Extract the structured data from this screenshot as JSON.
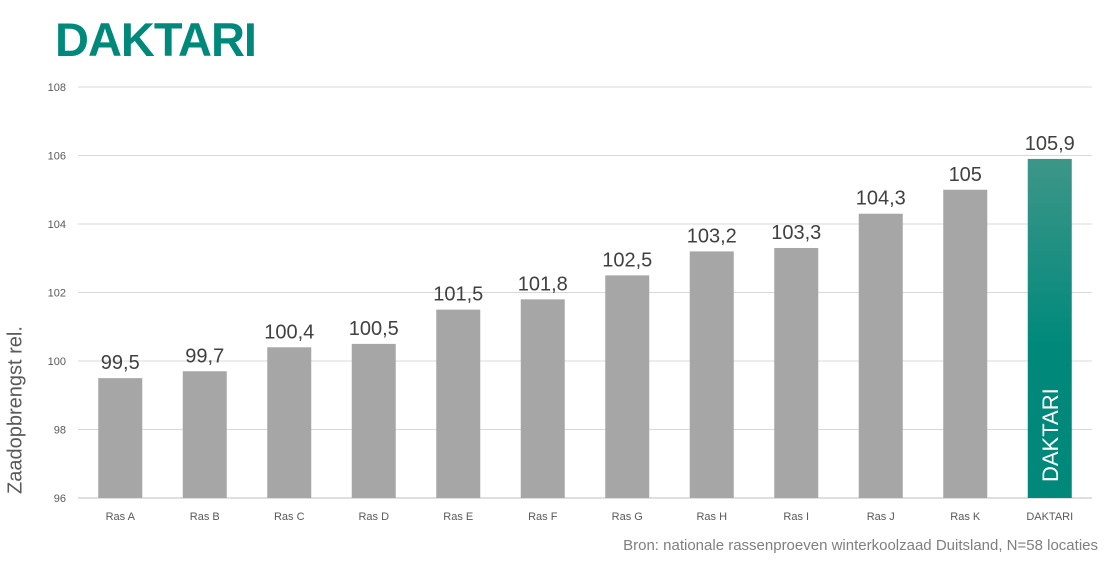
{
  "title": "DAKTARI",
  "source": "Bron: nationale rassenproeven winterkoolzaad Duitsland, N=58 locaties",
  "colors": {
    "brand": "#00897b",
    "brand_top": "#3d9688",
    "bar": "#a6a6a6",
    "grid": "#d9d9d9",
    "axis": "#bfbfbf"
  },
  "chart_data": {
    "type": "bar",
    "title": "",
    "xlabel": "",
    "ylabel": "Zaadopbrengst rel.",
    "ylim": [
      96,
      108
    ],
    "yticks": [
      "96",
      "98",
      "100",
      "102",
      "104",
      "106",
      "108"
    ],
    "grid": true,
    "categories": [
      "Ras A",
      "Ras B",
      "Ras C",
      "Ras D",
      "Ras E",
      "Ras F",
      "Ras G",
      "Ras H",
      "Ras I",
      "Ras J",
      "Ras K",
      "DAKTARI"
    ],
    "values": [
      99.5,
      99.7,
      100.4,
      100.5,
      101.5,
      101.8,
      102.5,
      103.2,
      103.3,
      104.3,
      105,
      105.9
    ],
    "data_labels": [
      "99,5",
      "99,7",
      "100,4",
      "100,5",
      "101,5",
      "101,8",
      "102,5",
      "103,2",
      "103,3",
      "104,3",
      "105",
      "105,9"
    ],
    "highlight": {
      "category": "DAKTARI",
      "label": "DAKTARI"
    }
  }
}
